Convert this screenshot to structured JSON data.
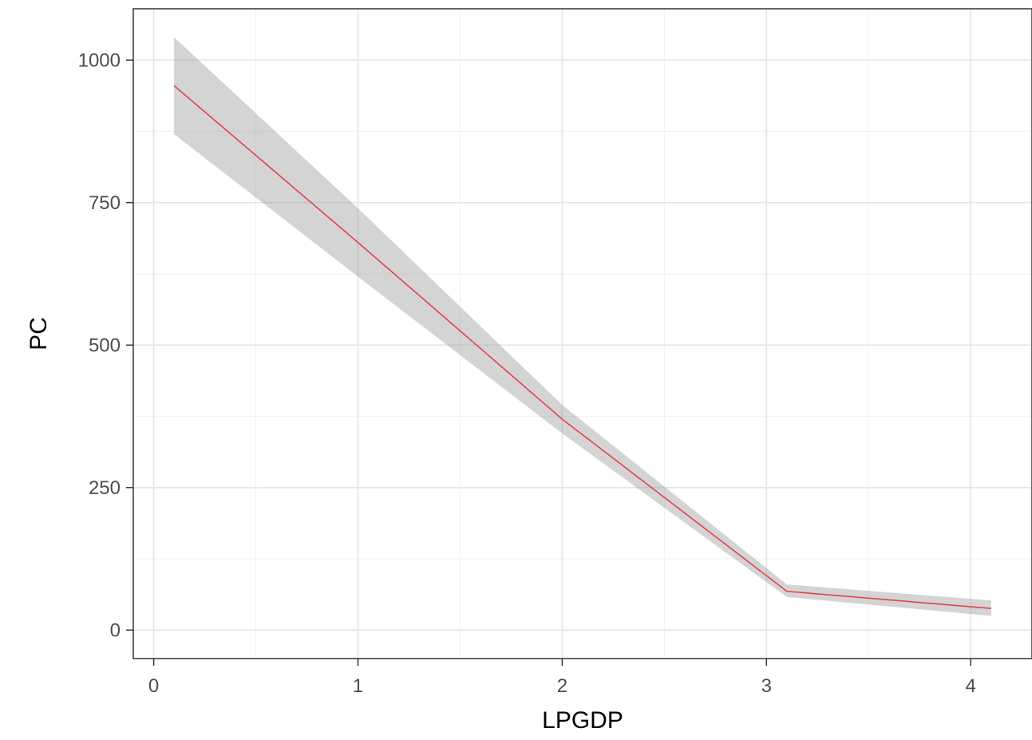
{
  "chart_data": {
    "type": "line",
    "title": "",
    "xlabel": "LPGDP",
    "ylabel": "PC",
    "xlim": [
      -0.1,
      4.3
    ],
    "ylim": [
      -50,
      1090
    ],
    "x_ticks": [
      0,
      1,
      2,
      3,
      4
    ],
    "y_ticks": [
      0,
      250,
      500,
      750,
      1000
    ],
    "x_tick_labels": [
      "0",
      "1",
      "2",
      "3",
      "4"
    ],
    "y_tick_labels": [
      "0",
      "250",
      "500",
      "750",
      "1000"
    ],
    "grid": true,
    "legend": "none",
    "series": [
      {
        "x": [
          0.1,
          1.0,
          2.0,
          3.1,
          4.1
        ],
        "y": [
          955,
          680,
          370,
          68,
          38
        ],
        "lower": [
          870,
          620,
          345,
          58,
          25
        ],
        "upper": [
          1040,
          740,
          395,
          80,
          52
        ]
      }
    ],
    "colors": {
      "line": "#e0434b",
      "ribbon": "#999999",
      "grid_major": "#e6e6e6",
      "grid_minor": "#f2f2f2",
      "panel_border": "#333333",
      "tick_text": "#4d4d4d",
      "axis_title": "#000000"
    }
  }
}
